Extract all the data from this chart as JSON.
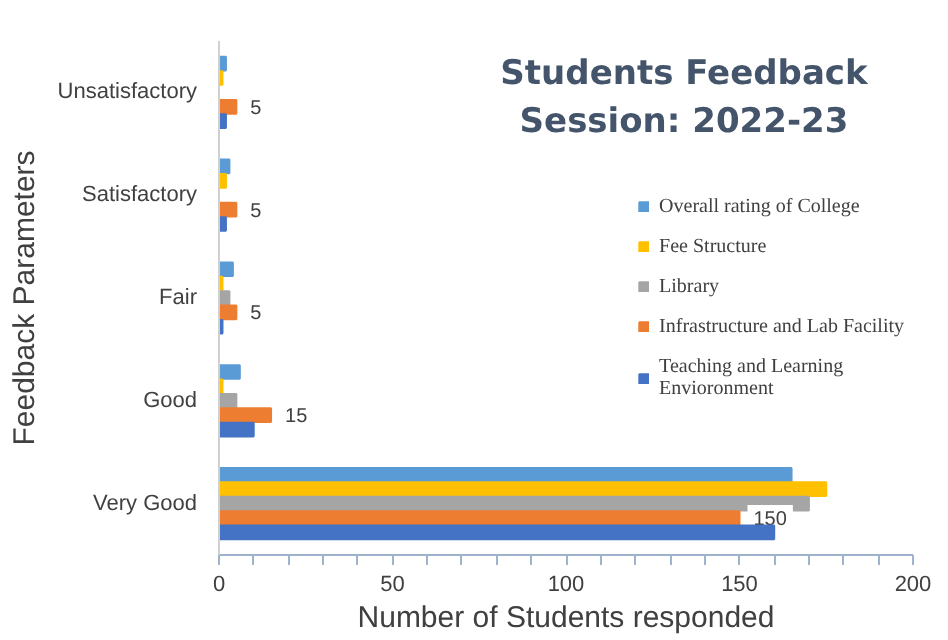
{
  "chart_data": {
    "type": "bar",
    "orientation": "horizontal",
    "title": "Students Feedback Session: 2022-23",
    "xlabel": "Number of Students responded",
    "ylabel": "Feedback Parameters",
    "categories": [
      "Unsatisfactory",
      "Satisfactory",
      "Fair",
      "Good",
      "Very Good"
    ],
    "series": [
      {
        "name": "Overall rating of College",
        "color": "#5b9bd5",
        "values": [
          2,
          3,
          4,
          6,
          165
        ]
      },
      {
        "name": "Fee Structure",
        "color": "#ffc000",
        "values": [
          1,
          2,
          1,
          1,
          175
        ]
      },
      {
        "name": "Library",
        "color": "#a5a5a5",
        "values": [
          0,
          0,
          3,
          5,
          170
        ]
      },
      {
        "name": "Infrastructure and Lab Facility",
        "color": "#ed7d31",
        "values": [
          5,
          5,
          5,
          15,
          150
        ],
        "value_labels": [
          "5",
          "5",
          "5",
          "15",
          "150"
        ]
      },
      {
        "name": "Teaching and Learning Envioronment",
        "color": "#4472c4",
        "values": [
          2,
          2,
          1,
          10,
          160
        ]
      }
    ],
    "xlim": [
      0,
      200
    ],
    "xticks": [
      0,
      {
        "value": 10,
        "label": null
      },
      {
        "value": 20,
        "label": null
      },
      {
        "value": 30,
        "label": null
      },
      {
        "value": 40,
        "label": null
      },
      50,
      {
        "value": 60,
        "label": null
      },
      {
        "value": 70,
        "label": null
      },
      {
        "value": 80,
        "label": null
      },
      {
        "value": 90,
        "label": null
      },
      100,
      {
        "value": 110,
        "label": null
      },
      {
        "value": 120,
        "label": null
      },
      {
        "value": 130,
        "label": null
      },
      {
        "value": 140,
        "label": null
      },
      150,
      {
        "value": 160,
        "label": null
      },
      {
        "value": 170,
        "label": null
      },
      {
        "value": 180,
        "label": null
      },
      {
        "value": 190,
        "label": null
      },
      200
    ],
    "grid": false,
    "legend": "right"
  }
}
